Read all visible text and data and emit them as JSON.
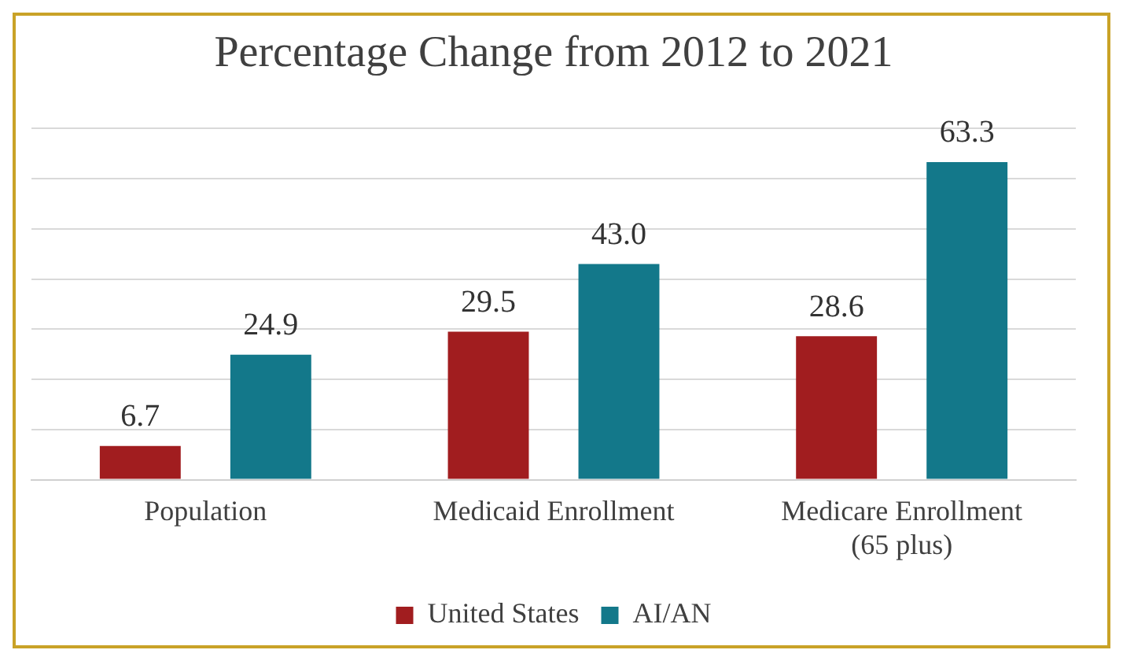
{
  "chart_data": {
    "type": "bar",
    "title": "Percentage Change from 2012 to 2021",
    "categories": [
      "Population",
      "Medicaid Enrollment",
      "Medicare Enrollment (65 plus)"
    ],
    "series": [
      {
        "name": "United States",
        "color": "#a11d1f",
        "values": [
          6.7,
          29.5,
          28.6
        ],
        "value_labels": [
          "6.7",
          "29.5",
          "28.6"
        ]
      },
      {
        "name": "AI/AN",
        "color": "#13788a",
        "values": [
          24.9,
          43.0,
          63.3
        ],
        "value_labels": [
          "24.9",
          "43.0",
          "63.3"
        ]
      }
    ],
    "ylim": [
      0,
      70
    ],
    "yticks": [
      {
        "value": 0,
        "label": null
      },
      {
        "value": 10,
        "label": null
      },
      {
        "value": 20,
        "label": null
      },
      {
        "value": 30,
        "label": null
      },
      {
        "value": 40,
        "label": null
      },
      {
        "value": 50,
        "label": null
      },
      {
        "value": 60,
        "label": null
      },
      {
        "value": 70,
        "label": null
      }
    ],
    "tick_labels": "x",
    "grid": "y",
    "legend": "bottom"
  }
}
